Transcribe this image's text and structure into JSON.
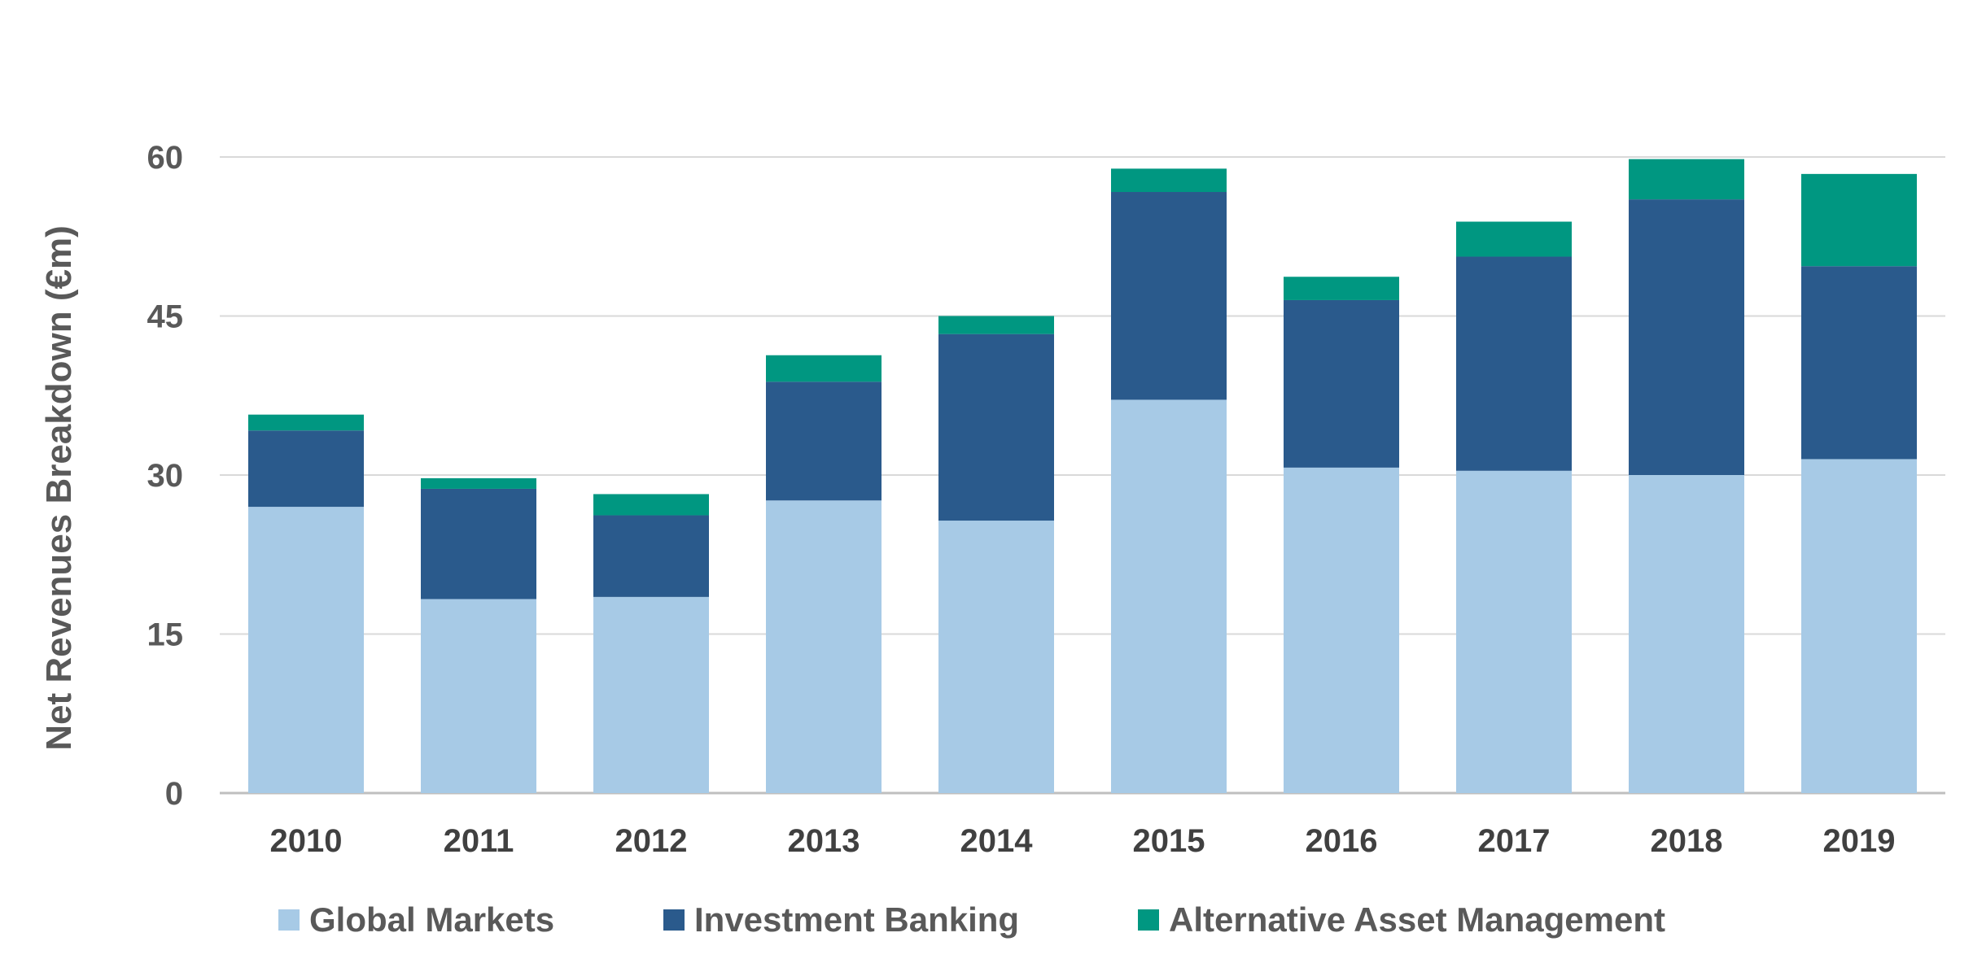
{
  "chart_data": {
    "type": "bar",
    "stacked": true,
    "categories": [
      "2010",
      "2011",
      "2012",
      "2013",
      "2014",
      "2015",
      "2016",
      "2017",
      "2018",
      "2019"
    ],
    "series": [
      {
        "name": "Global Markets",
        "color": "#a7cae6",
        "values": [
          27.0,
          18.3,
          18.5,
          27.6,
          25.7,
          37.1,
          30.7,
          30.4,
          30.0,
          31.5
        ]
      },
      {
        "name": "Investment Banking",
        "color": "#2a5a8c",
        "values": [
          7.2,
          10.4,
          7.7,
          11.2,
          17.6,
          19.6,
          15.8,
          20.2,
          26.0,
          18.2
        ]
      },
      {
        "name": "Alternative Asset Management",
        "color": "#009781",
        "values": [
          1.5,
          1.0,
          2.0,
          2.5,
          1.7,
          2.2,
          2.2,
          3.3,
          3.8,
          8.7
        ]
      }
    ],
    "title": "",
    "xlabel": "",
    "ylabel": "Net Revenues Breakdown (€m)",
    "ylim": [
      0,
      60
    ],
    "yticks": [
      "0",
      "15",
      "30",
      "45",
      "60"
    ],
    "grid": true,
    "legend_position": "bottom"
  }
}
